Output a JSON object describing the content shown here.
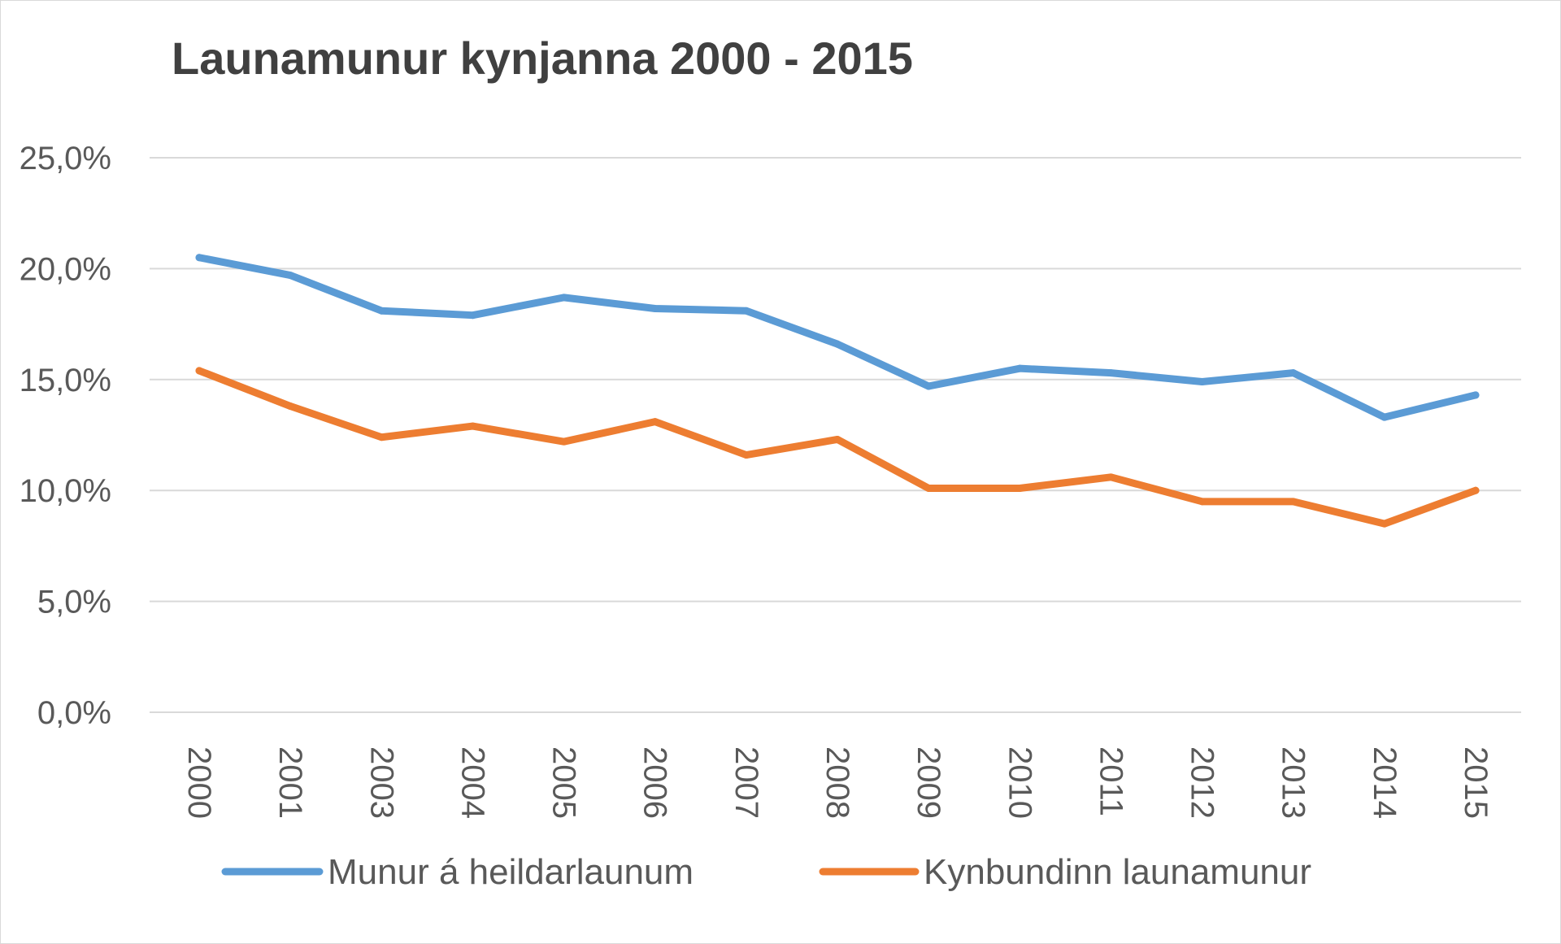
{
  "chart_data": {
    "type": "line",
    "title": "Launamunur kynjanna 2000 - 2015",
    "xlabel": "",
    "ylabel": "",
    "categories": [
      "2000",
      "2001",
      "2003",
      "2004",
      "2005",
      "2006",
      "2007",
      "2008",
      "2009",
      "2010",
      "2011",
      "2012",
      "2013",
      "2014",
      "2015"
    ],
    "ylim": [
      0,
      25
    ],
    "yticks": [
      "0,0%",
      "5,0%",
      "10,0%",
      "15,0%",
      "20,0%",
      "25,0%"
    ],
    "ytick_values": [
      0,
      5,
      10,
      15,
      20,
      25
    ],
    "grid": true,
    "legend_position": "bottom",
    "series": [
      {
        "name": "Munur á heildarlaunum",
        "color": "#5b9bd5",
        "values": [
          20.5,
          19.7,
          18.1,
          17.9,
          18.7,
          18.2,
          18.1,
          16.6,
          14.7,
          15.5,
          15.3,
          14.9,
          15.3,
          13.3,
          14.3
        ]
      },
      {
        "name": "Kynbundinn launamunur",
        "color": "#ed7d31",
        "values": [
          15.4,
          13.8,
          12.4,
          12.9,
          12.2,
          13.1,
          11.6,
          12.3,
          10.1,
          10.1,
          10.6,
          9.5,
          9.5,
          8.5,
          10.0
        ]
      }
    ]
  }
}
